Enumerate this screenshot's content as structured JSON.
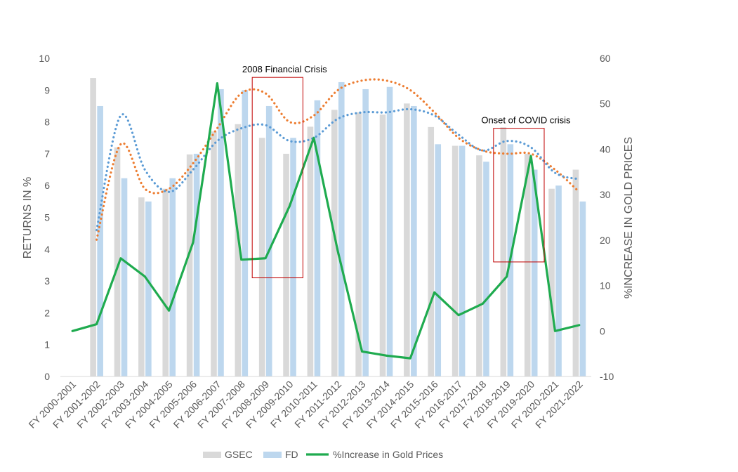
{
  "chart_data": {
    "type": "bar",
    "categories": [
      "FY 2000-2001",
      "FY 2001-2002",
      "FY 2002-2003",
      "FY 2003-2004",
      "FY 2004-2005",
      "FY 2005-2006",
      "FY 2006-2007",
      "FY 2007-2008",
      "FY 2008-2009",
      "FY 2009-2010",
      "FY 2010-2011",
      "FY 2011-2012",
      "FY 2012-2013",
      "FY 2013-2014",
      "FY 2014-2015",
      "FY 2015-2016",
      "FY 2016-2017",
      "FY 2017-2018",
      "FY 2018-2019",
      "FY 2019-2020",
      "FY 2020-2021",
      "FY 2021-2022"
    ],
    "series": [
      {
        "name": "GSEC",
        "type": "bar",
        "axis": "left",
        "color": "#d9d9d9",
        "values": [
          null,
          9.38,
          7.2,
          5.63,
          5.9,
          6.98,
          7.7,
          7.93,
          7.5,
          7.0,
          7.85,
          8.38,
          8.3,
          8.23,
          8.58,
          7.84,
          7.25,
          6.95,
          7.83,
          7.0,
          5.9,
          6.5
        ]
      },
      {
        "name": "FD",
        "type": "bar",
        "axis": "left",
        "color": "#bdd7ee",
        "values": [
          null,
          8.5,
          6.23,
          5.5,
          6.23,
          7.0,
          9.03,
          9.0,
          8.5,
          7.5,
          8.68,
          9.25,
          9.03,
          9.1,
          8.5,
          7.3,
          7.25,
          6.75,
          7.3,
          6.5,
          6.0,
          5.5
        ]
      },
      {
        "name": "%Increase in Gold Prices",
        "type": "line",
        "axis": "right",
        "color": "#1fab4f",
        "values": [
          0.0,
          1.5,
          16.0,
          12.0,
          4.5,
          19.5,
          54.5,
          15.7,
          16.0,
          27.5,
          42.5,
          17.5,
          -4.5,
          -5.4,
          -6.0,
          8.5,
          3.5,
          6.0,
          12.0,
          38.5,
          0.0,
          1.3
        ]
      }
    ],
    "trendlines": [
      {
        "name": "FD polynomial trend",
        "color": "#ed7d31",
        "axis": "left",
        "values": [
          null,
          4.3,
          7.3,
          5.9,
          5.9,
          6.7,
          7.8,
          8.9,
          8.9,
          8.0,
          8.2,
          9.0,
          9.3,
          9.3,
          9.0,
          8.3,
          7.5,
          7.1,
          7.0,
          7.0,
          6.5,
          5.8
        ]
      },
      {
        "name": "GSEC polynomial trend",
        "color": "#5b9bd5",
        "axis": "left",
        "values": [
          null,
          4.6,
          8.2,
          6.5,
          5.8,
          6.5,
          7.4,
          7.8,
          7.9,
          7.4,
          7.5,
          8.1,
          8.3,
          8.3,
          8.4,
          8.2,
          7.6,
          7.1,
          7.4,
          7.2,
          6.4,
          6.2
        ]
      }
    ],
    "title": "",
    "xlabel": "",
    "ylabel": "RETURNS IN %",
    "y2label": "%INCREASE IN GOLD PRICES",
    "ylim": [
      0,
      10
    ],
    "yticks": [
      0,
      1,
      2,
      3,
      4,
      5,
      6,
      7,
      8,
      9,
      10
    ],
    "y2lim": [
      -10,
      60
    ],
    "y2ticks": [
      -10,
      0,
      10,
      20,
      30,
      40,
      50,
      60
    ],
    "legend_position": "bottom",
    "grid": false,
    "annotations": [
      {
        "text": "2008 Financial Crisis",
        "from_category": 8,
        "to_category": 9,
        "y_top": 9.4,
        "y_bottom": 3.1
      },
      {
        "text": "Onset of COVID crisis",
        "from_category": 18,
        "to_category": 19,
        "y_top": 7.8,
        "y_bottom": 3.6
      }
    ]
  }
}
